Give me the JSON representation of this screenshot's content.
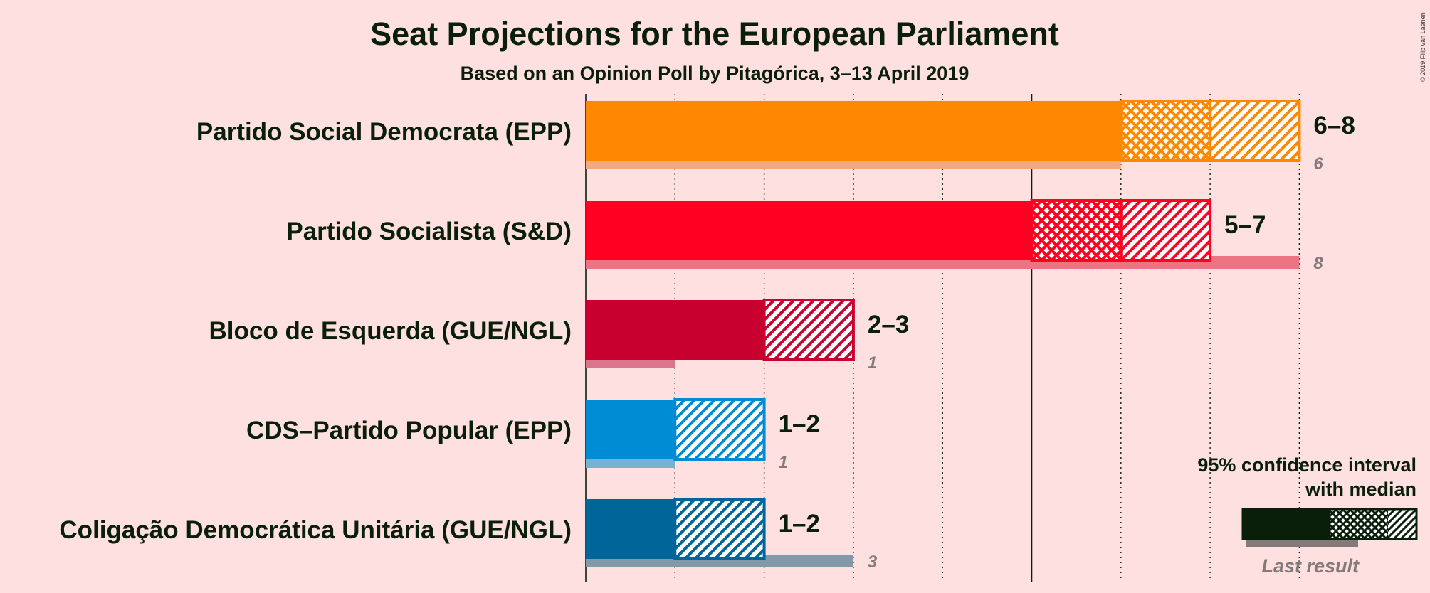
{
  "copyright": "© 2019 Filip van Laenen",
  "chart_data": {
    "type": "bar",
    "title": "Seat Projections for the European Parliament",
    "subtitle": "Based on an Opinion Poll by Pitagórica, 3–13 April 2019",
    "xlim": [
      0,
      8
    ],
    "parties": [
      {
        "name": "Partido Social Democrata (EPP)",
        "low": 6,
        "median": 7,
        "high": 8,
        "range_label": "6–8",
        "last": 6,
        "last_label": "6",
        "color": "#FF8800",
        "last_color": "#F2A97E"
      },
      {
        "name": "Partido Socialista (S&D)",
        "low": 5,
        "median": 6,
        "high": 7,
        "range_label": "5–7",
        "last": 8,
        "last_label": "8",
        "color": "#FF0022",
        "last_color": "#EC7483"
      },
      {
        "name": "Bloco de Esquerda (GUE/NGL)",
        "low": 2,
        "median": 2,
        "high": 3,
        "range_label": "2–3",
        "last": 1,
        "last_label": "1",
        "color": "#C8002F",
        "last_color": "#D9768E"
      },
      {
        "name": "CDS–Partido Popular (EPP)",
        "low": 1,
        "median": 1,
        "high": 2,
        "range_label": "1–2",
        "last": 1,
        "last_label": "1",
        "color": "#008BD5",
        "last_color": "#77B2D3"
      },
      {
        "name": "Coligação Democrática Unitária (GUE/NGL)",
        "low": 1,
        "median": 1,
        "high": 2,
        "range_label": "1–2",
        "last": 3,
        "last_label": "3",
        "color": "#006699",
        "last_color": "#8499A8"
      }
    ],
    "legend": {
      "line1": "95% confidence interval",
      "line2": "with median",
      "last_result": "Last result",
      "placement": "bottom-right"
    }
  }
}
